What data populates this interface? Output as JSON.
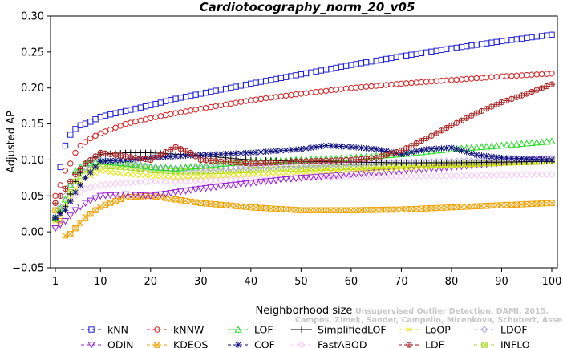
{
  "chart_data": {
    "type": "line",
    "title": "Cardiotocography_norm_20_v05",
    "xlabel": "Neighborhood size",
    "ylabel": "Adjusted AP",
    "xlim": [
      1,
      100
    ],
    "ylim": [
      -0.05,
      0.3
    ],
    "xticks": [
      1,
      10,
      20,
      30,
      40,
      50,
      60,
      70,
      80,
      90,
      100
    ],
    "yticks": [
      -0.05,
      0.0,
      0.05,
      0.1,
      0.15,
      0.2,
      0.25,
      0.3
    ],
    "ytick_labels": [
      "−0.05",
      "0.00",
      "0.05",
      "0.10",
      "0.15",
      "0.20",
      "0.25",
      "0.30"
    ],
    "grid": false,
    "legend_position": "bottom",
    "watermark": [
      "Unsupervised Outlier Detection. DAMI, 2015.",
      "Campos, Zimek, Sander, Campello, Micenkova, Schubert, Assent, Houle"
    ],
    "series": [
      {
        "name": "kNN",
        "color": "#1f1fd8",
        "marker": "square",
        "points": [
          [
            2,
            0.09
          ],
          [
            3,
            0.12
          ],
          [
            4,
            0.135
          ],
          [
            5,
            0.143
          ],
          [
            6,
            0.148
          ],
          [
            8,
            0.153
          ],
          [
            10,
            0.16
          ],
          [
            15,
            0.168
          ],
          [
            20,
            0.176
          ],
          [
            25,
            0.185
          ],
          [
            30,
            0.192
          ],
          [
            40,
            0.206
          ],
          [
            50,
            0.219
          ],
          [
            60,
            0.232
          ],
          [
            70,
            0.244
          ],
          [
            80,
            0.255
          ],
          [
            90,
            0.265
          ],
          [
            100,
            0.274
          ]
        ]
      },
      {
        "name": "kNNW",
        "color": "#d81f1f",
        "marker": "circle",
        "points": [
          [
            1,
            0.05
          ],
          [
            2,
            0.065
          ],
          [
            3,
            0.085
          ],
          [
            4,
            0.095
          ],
          [
            5,
            0.11
          ],
          [
            6,
            0.12
          ],
          [
            8,
            0.13
          ],
          [
            10,
            0.137
          ],
          [
            15,
            0.15
          ],
          [
            20,
            0.158
          ],
          [
            25,
            0.165
          ],
          [
            30,
            0.171
          ],
          [
            40,
            0.183
          ],
          [
            50,
            0.192
          ],
          [
            60,
            0.2
          ],
          [
            70,
            0.206
          ],
          [
            80,
            0.211
          ],
          [
            90,
            0.216
          ],
          [
            100,
            0.22
          ]
        ]
      },
      {
        "name": "LOF",
        "color": "#22dd22",
        "marker": "triangle-up",
        "points": [
          [
            1,
            0.02
          ],
          [
            3,
            0.045
          ],
          [
            5,
            0.085
          ],
          [
            7,
            0.095
          ],
          [
            10,
            0.098
          ],
          [
            15,
            0.095
          ],
          [
            20,
            0.09
          ],
          [
            25,
            0.088
          ],
          [
            30,
            0.092
          ],
          [
            40,
            0.098
          ],
          [
            50,
            0.1
          ],
          [
            60,
            0.103
          ],
          [
            70,
            0.108
          ],
          [
            80,
            0.115
          ],
          [
            90,
            0.12
          ],
          [
            100,
            0.126
          ]
        ]
      },
      {
        "name": "SimplifiedLOF",
        "color": "#000000",
        "marker": "plus",
        "points": [
          [
            1,
            0.018
          ],
          [
            3,
            0.035
          ],
          [
            5,
            0.07
          ],
          [
            7,
            0.095
          ],
          [
            10,
            0.108
          ],
          [
            15,
            0.11
          ],
          [
            20,
            0.11
          ],
          [
            25,
            0.108
          ],
          [
            30,
            0.106
          ],
          [
            40,
            0.1
          ],
          [
            50,
            0.098
          ],
          [
            60,
            0.097
          ],
          [
            70,
            0.096
          ],
          [
            80,
            0.096
          ],
          [
            90,
            0.097
          ],
          [
            100,
            0.098
          ]
        ]
      },
      {
        "name": "LoOP",
        "color": "#e6e600",
        "marker": "x",
        "points": [
          [
            1,
            0.015
          ],
          [
            3,
            0.03
          ],
          [
            5,
            0.06
          ],
          [
            7,
            0.075
          ],
          [
            10,
            0.085
          ],
          [
            15,
            0.08
          ],
          [
            20,
            0.078
          ],
          [
            25,
            0.076
          ],
          [
            30,
            0.077
          ],
          [
            40,
            0.08
          ],
          [
            50,
            0.083
          ],
          [
            60,
            0.086
          ],
          [
            70,
            0.089
          ],
          [
            80,
            0.092
          ],
          [
            90,
            0.095
          ],
          [
            100,
            0.098
          ]
        ]
      },
      {
        "name": "LDOF",
        "color": "#b0a3ee",
        "marker": "diamond",
        "points": [
          [
            1,
            0.02
          ],
          [
            3,
            0.05
          ],
          [
            5,
            0.08
          ],
          [
            7,
            0.09
          ],
          [
            10,
            0.1
          ],
          [
            15,
            0.096
          ],
          [
            20,
            0.09
          ],
          [
            25,
            0.088
          ],
          [
            30,
            0.088
          ],
          [
            40,
            0.09
          ],
          [
            50,
            0.093
          ],
          [
            60,
            0.095
          ],
          [
            70,
            0.097
          ],
          [
            80,
            0.098
          ],
          [
            90,
            0.1
          ],
          [
            100,
            0.102
          ]
        ]
      },
      {
        "name": "ODIN",
        "color": "#9b1fd8",
        "marker": "triangle-down",
        "points": [
          [
            1,
            0.005
          ],
          [
            3,
            0.015
          ],
          [
            5,
            0.03
          ],
          [
            7,
            0.04
          ],
          [
            10,
            0.05
          ],
          [
            15,
            0.052
          ],
          [
            20,
            0.05
          ],
          [
            25,
            0.055
          ],
          [
            30,
            0.06
          ],
          [
            40,
            0.068
          ],
          [
            50,
            0.075
          ],
          [
            60,
            0.08
          ],
          [
            70,
            0.085
          ],
          [
            80,
            0.09
          ],
          [
            90,
            0.096
          ],
          [
            100,
            0.102
          ]
        ]
      },
      {
        "name": "KDEOS",
        "color": "#f0a000",
        "marker": "square-x",
        "points": [
          [
            1,
            0.03
          ],
          [
            2,
            0.015
          ],
          [
            3,
            -0.005
          ],
          [
            4,
            -0.003
          ],
          [
            5,
            0.005
          ],
          [
            7,
            0.02
          ],
          [
            10,
            0.035
          ],
          [
            15,
            0.048
          ],
          [
            20,
            0.05
          ],
          [
            25,
            0.045
          ],
          [
            30,
            0.04
          ],
          [
            40,
            0.034
          ],
          [
            50,
            0.03
          ],
          [
            60,
            0.03
          ],
          [
            70,
            0.031
          ],
          [
            80,
            0.034
          ],
          [
            90,
            0.037
          ],
          [
            100,
            0.04
          ]
        ]
      },
      {
        "name": "COF",
        "color": "#101080",
        "marker": "star",
        "points": [
          [
            1,
            0.02
          ],
          [
            3,
            0.03
          ],
          [
            5,
            0.055
          ],
          [
            7,
            0.075
          ],
          [
            10,
            0.098
          ],
          [
            15,
            0.1
          ],
          [
            20,
            0.103
          ],
          [
            25,
            0.105
          ],
          [
            30,
            0.107
          ],
          [
            40,
            0.11
          ],
          [
            50,
            0.115
          ],
          [
            55,
            0.12
          ],
          [
            60,
            0.118
          ],
          [
            65,
            0.115
          ],
          [
            70,
            0.108
          ],
          [
            75,
            0.115
          ],
          [
            80,
            0.117
          ],
          [
            85,
            0.107
          ],
          [
            90,
            0.103
          ],
          [
            100,
            0.1
          ]
        ]
      },
      {
        "name": "FastABOD",
        "color": "#f5c8f5",
        "marker": "diamond",
        "points": [
          [
            1,
            0.02
          ],
          [
            3,
            0.035
          ],
          [
            5,
            0.05
          ],
          [
            7,
            0.06
          ],
          [
            10,
            0.065
          ],
          [
            15,
            0.068
          ],
          [
            20,
            0.07
          ],
          [
            25,
            0.07
          ],
          [
            30,
            0.071
          ],
          [
            40,
            0.073
          ],
          [
            50,
            0.075
          ],
          [
            60,
            0.076
          ],
          [
            70,
            0.077
          ],
          [
            80,
            0.078
          ],
          [
            90,
            0.079
          ],
          [
            100,
            0.08
          ]
        ]
      },
      {
        "name": "LDF",
        "color": "#aa2222",
        "marker": "circle-plus",
        "points": [
          [
            1,
            0.04
          ],
          [
            3,
            0.06
          ],
          [
            5,
            0.08
          ],
          [
            7,
            0.095
          ],
          [
            10,
            0.11
          ],
          [
            15,
            0.105
          ],
          [
            20,
            0.1
          ],
          [
            25,
            0.118
          ],
          [
            28,
            0.11
          ],
          [
            30,
            0.1
          ],
          [
            40,
            0.095
          ],
          [
            50,
            0.098
          ],
          [
            60,
            0.1
          ],
          [
            65,
            0.103
          ],
          [
            70,
            0.113
          ],
          [
            75,
            0.13
          ],
          [
            80,
            0.148
          ],
          [
            85,
            0.165
          ],
          [
            90,
            0.18
          ],
          [
            95,
            0.192
          ],
          [
            100,
            0.205
          ]
        ]
      },
      {
        "name": "INFLO",
        "color": "#a6d81f",
        "marker": "square-x",
        "points": [
          [
            1,
            0.018
          ],
          [
            3,
            0.04
          ],
          [
            5,
            0.07
          ],
          [
            7,
            0.085
          ],
          [
            10,
            0.092
          ],
          [
            15,
            0.09
          ],
          [
            20,
            0.086
          ],
          [
            25,
            0.084
          ],
          [
            30,
            0.084
          ],
          [
            40,
            0.086
          ],
          [
            50,
            0.088
          ],
          [
            60,
            0.09
          ],
          [
            70,
            0.092
          ],
          [
            80,
            0.094
          ],
          [
            90,
            0.096
          ],
          [
            100,
            0.098
          ]
        ]
      }
    ]
  }
}
